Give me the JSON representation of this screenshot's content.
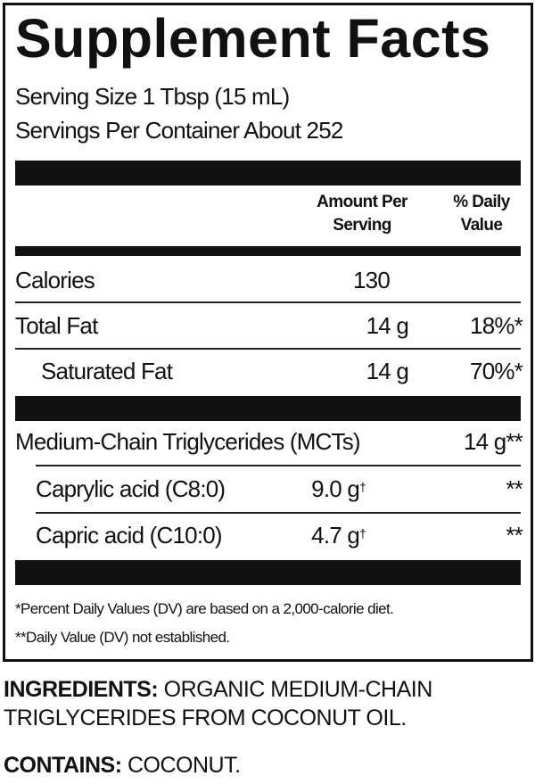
{
  "title": "Supplement Facts",
  "serving_size": "Serving Size 1 Tbsp (15 mL)",
  "servings_per_container": "Servings Per Container About 252",
  "header": {
    "amount_line1": "Amount Per",
    "amount_line2": "Serving",
    "dv_line1": "% Daily",
    "dv_line2": "Value"
  },
  "rows": [
    {
      "name": "Calories",
      "amount": "130",
      "dv": ""
    },
    {
      "name": "Total Fat",
      "amount": "14 g",
      "dv": "18%*"
    },
    {
      "name": "Saturated Fat",
      "amount": "14 g",
      "dv": "70%*"
    },
    {
      "name": "Medium-Chain Triglycerides (MCTs)",
      "amount": "",
      "dv": "14 g**"
    },
    {
      "name": "Caprylic acid (C8:0)",
      "amount": "9.0 g",
      "amount_mark": "†",
      "dv": "**"
    },
    {
      "name": "Capric acid (C10:0)",
      "amount": "4.7 g",
      "amount_mark": "†",
      "dv": "**"
    }
  ],
  "footnotes": [
    "*Percent Daily Values (DV) are based on a 2,000-calorie diet.",
    "**Daily Value (DV) not established."
  ],
  "ingredients": {
    "label": "INGREDIENTS:",
    "text_line1": "ORGANIC MEDIUM-CHAIN",
    "text_line2": "TRIGLYCERIDES FROM COCONUT OIL."
  },
  "contains": {
    "label": "CONTAINS:",
    "text": "COCONUT."
  }
}
